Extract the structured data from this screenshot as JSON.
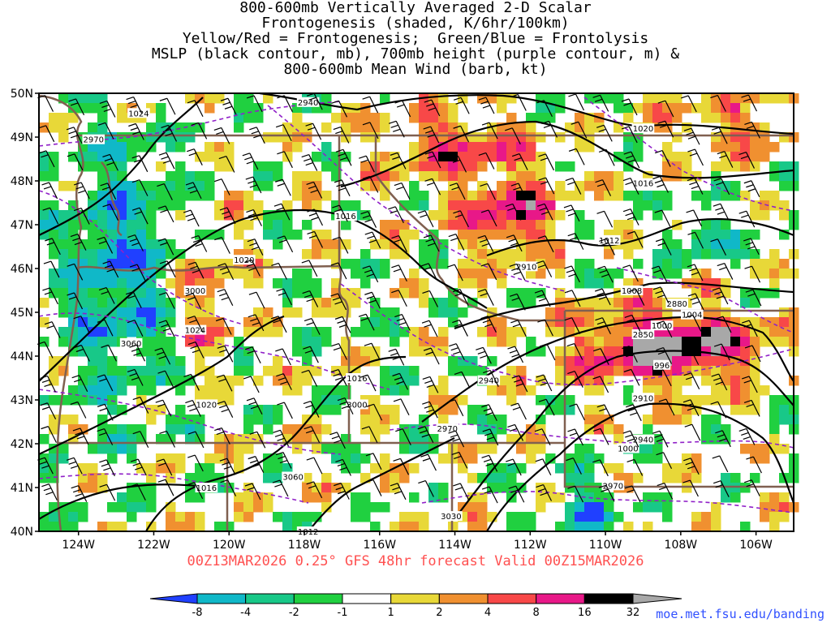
{
  "title_lines": [
    "800-600mb Vertically Averaged 2-D Scalar",
    "Frontogenesis (shaded, K/6hr/100km)",
    "Yellow/Red = Frontogenesis;  Green/Blue = Frontolysis",
    "MSLP (black contour, mb), 700mb height (purple contour, m) &",
    "800-600mb Mean Wind (barb, kt)"
  ],
  "map": {
    "lat_labels": [
      {
        "lat": 50,
        "label": "50N"
      },
      {
        "lat": 49,
        "label": "49N"
      },
      {
        "lat": 48,
        "label": "48N"
      },
      {
        "lat": 47,
        "label": "47N"
      },
      {
        "lat": 46,
        "label": "46N"
      },
      {
        "lat": 45,
        "label": "45N"
      },
      {
        "lat": 44,
        "label": "44N"
      },
      {
        "lat": 43,
        "label": "43N"
      },
      {
        "lat": 42,
        "label": "42N"
      },
      {
        "lat": 41,
        "label": "41N"
      },
      {
        "lat": 40,
        "label": "40N"
      }
    ],
    "lon_labels": [
      {
        "lon": -124,
        "label": "124W"
      },
      {
        "lon": -122,
        "label": "122W"
      },
      {
        "lon": -120,
        "label": "120W"
      },
      {
        "lon": -118,
        "label": "118W"
      },
      {
        "lon": -116,
        "label": "116W"
      },
      {
        "lon": -114,
        "label": "114W"
      },
      {
        "lon": -112,
        "label": "112W"
      },
      {
        "lon": -110,
        "label": "110W"
      },
      {
        "lon": -108,
        "label": "108W"
      },
      {
        "lon": -106,
        "label": "106W"
      }
    ],
    "extent": {
      "lon_min": -125.05,
      "lon_max": -105.0,
      "lat_min": 40,
      "lat_max": 50
    },
    "mslp_labels": [
      {
        "text": "1024",
        "lon": -122.4,
        "lat": 49.55
      },
      {
        "text": "1020",
        "lon": -109.0,
        "lat": 49.2
      },
      {
        "text": "1016",
        "lon": -116.9,
        "lat": 47.2
      },
      {
        "text": "1020",
        "lon": -119.6,
        "lat": 46.2
      },
      {
        "text": "1016",
        "lon": -109.0,
        "lat": 47.95
      },
      {
        "text": "1012",
        "lon": -109.9,
        "lat": 46.65
      },
      {
        "text": "1008",
        "lon": -109.3,
        "lat": 45.5
      },
      {
        "text": "1004",
        "lon": -107.7,
        "lat": 44.95
      },
      {
        "text": "1000",
        "lon": -108.5,
        "lat": 44.7
      },
      {
        "text": "996",
        "lon": -108.5,
        "lat": 43.8
      },
      {
        "text": "1024",
        "lon": -120.9,
        "lat": 44.6
      },
      {
        "text": "1020",
        "lon": -120.6,
        "lat": 42.9
      },
      {
        "text": "1016",
        "lon": -120.6,
        "lat": 41.0
      },
      {
        "text": "1016",
        "lon": -116.6,
        "lat": 43.5
      },
      {
        "text": "1012",
        "lon": -117.9,
        "lat": 40.0
      },
      {
        "text": "1000",
        "lon": -109.4,
        "lat": 41.9
      }
    ],
    "height_labels": [
      {
        "text": "2940",
        "lon": -117.9,
        "lat": 49.8
      },
      {
        "text": "2970",
        "lon": -123.6,
        "lat": 48.95
      },
      {
        "text": "2910",
        "lon": -112.1,
        "lat": 46.05
      },
      {
        "text": "3000",
        "lon": -120.9,
        "lat": 45.5
      },
      {
        "text": "3060",
        "lon": -122.6,
        "lat": 44.3
      },
      {
        "text": "2880",
        "lon": -108.1,
        "lat": 45.2
      },
      {
        "text": "2850",
        "lon": -109.0,
        "lat": 44.5
      },
      {
        "text": "2940",
        "lon": -113.1,
        "lat": 43.45
      },
      {
        "text": "3000",
        "lon": -116.6,
        "lat": 42.9
      },
      {
        "text": "2970",
        "lon": -114.2,
        "lat": 42.35
      },
      {
        "text": "2910",
        "lon": -109.0,
        "lat": 43.05
      },
      {
        "text": "2940",
        "lon": -109.0,
        "lat": 42.1
      },
      {
        "text": "3060",
        "lon": -118.3,
        "lat": 41.25
      },
      {
        "text": "2970",
        "lon": -109.8,
        "lat": 41.05
      },
      {
        "text": "3030",
        "lon": -114.1,
        "lat": 40.35
      }
    ]
  },
  "valid_line": "00Z13MAR2026 0.25° GFS 48hr forecast Valid 00Z15MAR2026",
  "colorbar": {
    "labels": [
      "-8",
      "-4",
      "-2",
      "-1",
      "1",
      "2",
      "4",
      "8",
      "16",
      "32"
    ],
    "colors": [
      "#2040ff",
      "#10b8c8",
      "#18c888",
      "#20d040",
      "#ffffff",
      "#e8d838",
      "#f09030",
      "#f84848",
      "#e81888",
      "#000000",
      "#a8a8a8"
    ]
  },
  "credit": "moe.met.fsu.edu/banding",
  "colors": {
    "mslp": "#000000",
    "height": "#9020c8",
    "border": "#806050",
    "valid_text": "#ff5050",
    "credit": "#3050ff"
  }
}
